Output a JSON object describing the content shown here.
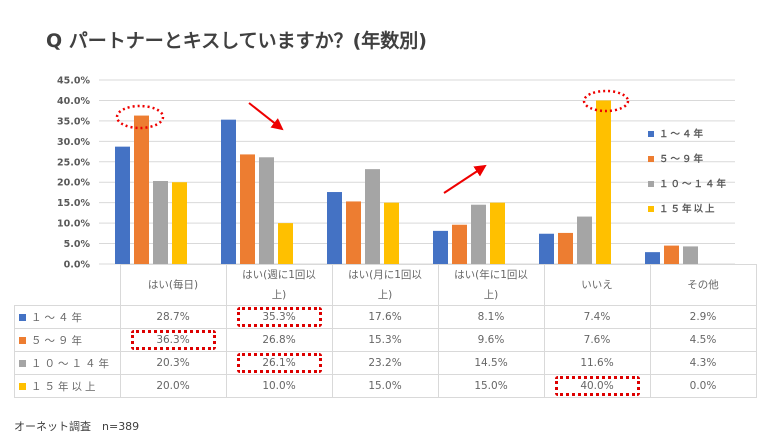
{
  "title": "Q パートナーとキスしていますか？(年数別)",
  "note": "オーネット調査　n=389",
  "chart_data": {
    "type": "bar",
    "title": "Q パートナーとキスしていますか？(年数別)",
    "categories": [
      "はい(毎日)",
      "はい(週に1回以上)",
      "はい(月に1回以上)",
      "はい(年に1回以上)",
      "いいえ",
      "その他"
    ],
    "category_labels": [
      [
        "はい(毎日)",
        ""
      ],
      [
        "はい(週に1回以",
        "上)"
      ],
      [
        "はい(月に1回以",
        "上)"
      ],
      [
        "はい(年に1回以",
        "上)"
      ],
      [
        "いいえ",
        ""
      ],
      [
        "その他",
        ""
      ]
    ],
    "series": [
      {
        "name": "１～４年",
        "color": "#4472c4",
        "values": [
          28.7,
          35.3,
          17.6,
          8.1,
          7.4,
          2.9
        ],
        "labels": [
          "28.7%",
          "35.3%",
          "17.6%",
          "8.1%",
          "7.4%",
          "2.9%"
        ]
      },
      {
        "name": "５～９年",
        "color": "#ed7d31",
        "values": [
          36.3,
          26.8,
          15.3,
          9.6,
          7.6,
          4.5
        ],
        "labels": [
          "36.3%",
          "26.8%",
          "15.3%",
          "9.6%",
          "7.6%",
          "4.5%"
        ]
      },
      {
        "name": "１０～１４年",
        "color": "#a5a5a5",
        "values": [
          20.3,
          26.1,
          23.2,
          14.5,
          11.6,
          4.3
        ],
        "labels": [
          "20.3%",
          "26.1%",
          "23.2%",
          "14.5%",
          "11.6%",
          "4.3%"
        ]
      },
      {
        "name": "１５年以上",
        "color": "#ffc000",
        "values": [
          20.0,
          10.0,
          15.0,
          15.0,
          40.0,
          0.0
        ],
        "labels": [
          "20.0%",
          "10.0%",
          "15.0%",
          "15.0%",
          "40.0%",
          "0.0%"
        ]
      }
    ],
    "yticks": [
      "0.0%",
      "5.0%",
      "10.0%",
      "15.0%",
      "20.0%",
      "25.0%",
      "30.0%",
      "35.0%",
      "40.0%",
      "45.0%"
    ],
    "ylim": [
      0,
      45
    ],
    "grid": true,
    "legend": "right",
    "highlights": [
      [
        1,
        0
      ],
      [
        0,
        1
      ],
      [
        1,
        2
      ],
      [
        4,
        3
      ]
    ]
  }
}
